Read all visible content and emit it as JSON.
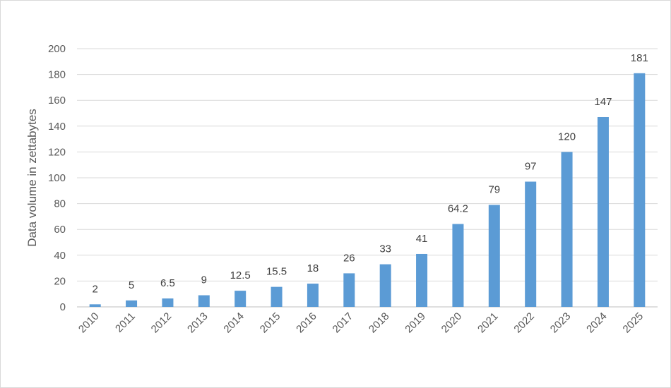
{
  "chart_data": {
    "type": "bar",
    "categories": [
      "2010",
      "2011",
      "2012",
      "2013",
      "2014",
      "2015",
      "2016",
      "2017",
      "2018",
      "2019",
      "2020",
      "2021",
      "2022",
      "2023",
      "2024",
      "2025"
    ],
    "series": [
      {
        "values": [
          2,
          5,
          6.5,
          9,
          12.5,
          15.5,
          18,
          26,
          33,
          41,
          64.2,
          79,
          97,
          120,
          147,
          181
        ],
        "data_labels": [
          "2",
          "5",
          "6.5",
          "9",
          "12.5",
          "15.5",
          "18",
          "26",
          "33",
          "41",
          "64.2",
          "79",
          "97",
          "120",
          "147",
          "181"
        ],
        "color": "#5b9bd5"
      }
    ],
    "title": "",
    "xlabel": "",
    "ylabel": "Data volume in zettabytes",
    "ylim": [
      0,
      200
    ],
    "yticks": [
      "0",
      "20",
      "40",
      "60",
      "80",
      "100",
      "120",
      "140",
      "160",
      "180",
      "200"
    ],
    "grid": true,
    "legend": "none"
  }
}
